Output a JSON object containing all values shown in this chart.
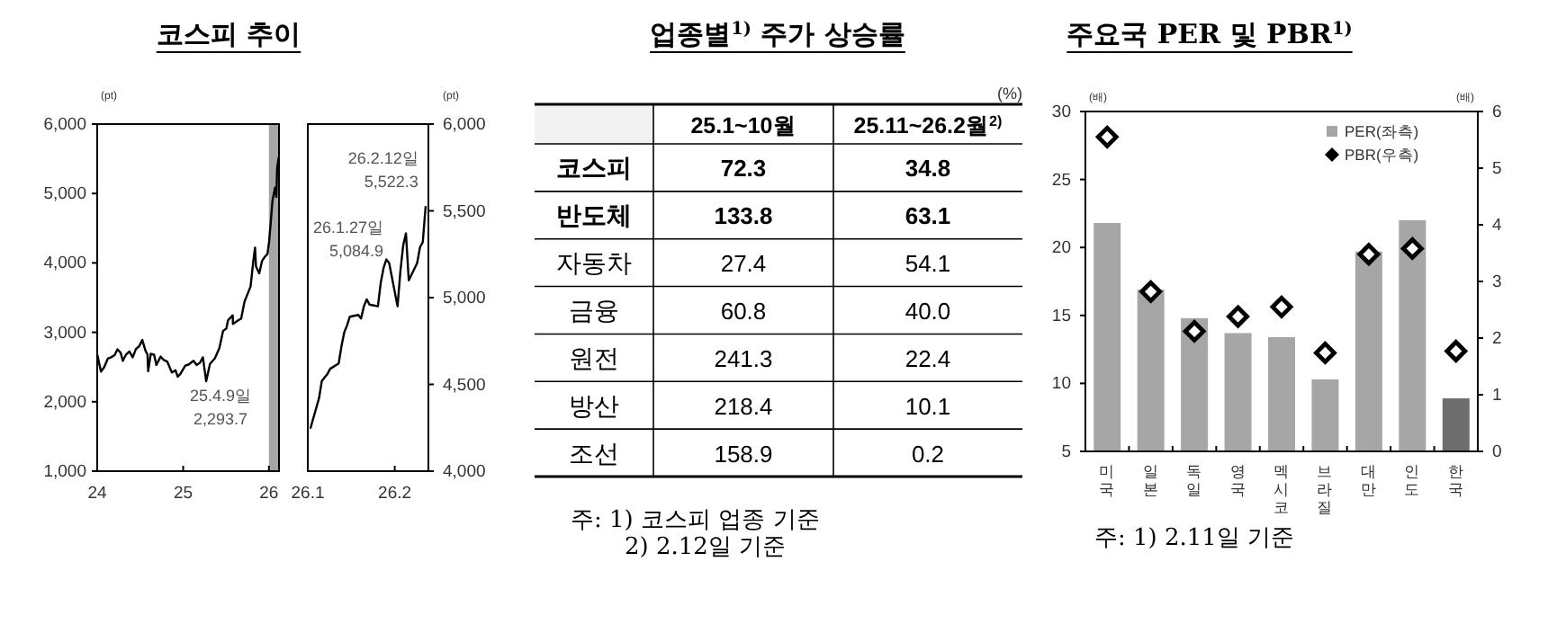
{
  "chart_data": [
    {
      "type": "line",
      "title": "코스피 추이",
      "ylabel": "(pt)",
      "color": "#000000",
      "x": [
        "2024-01-02",
        "2024-01-17",
        "2024-01-31",
        "2024-02-15",
        "2024-02-29",
        "2024-03-15",
        "2024-03-27",
        "2024-04-10",
        "2024-04-19",
        "2024-05-03",
        "2024-05-17",
        "2024-05-31",
        "2024-06-14",
        "2024-06-28",
        "2024-07-11",
        "2024-07-25",
        "2024-08-02",
        "2024-08-05",
        "2024-08-16",
        "2024-08-30",
        "2024-09-09",
        "2024-09-27",
        "2024-10-11",
        "2024-10-25",
        "2024-11-14",
        "2024-11-29",
        "2024-12-09",
        "2024-12-20",
        "2025-01-10",
        "2025-01-24",
        "2025-02-14",
        "2025-02-28",
        "2025-03-14",
        "2025-03-26",
        "2025-04-09",
        "2025-04-25",
        "2025-05-16",
        "2025-06-04",
        "2025-06-20",
        "2025-07-04",
        "2025-07-11",
        "2025-07-31",
        "2025-08-01",
        "2025-08-22",
        "2025-09-05",
        "2025-09-19",
        "2025-10-02",
        "2025-10-15",
        "2025-10-27",
        "2025-11-03",
        "2025-11-07",
        "2025-11-21",
        "2025-12-03",
        "2025-12-15",
        "2025-12-26",
        "2026-01-02",
        "2026-01-09",
        "2026-01-16",
        "2026-01-27",
        "2026-02-02",
        "2026-02-05",
        "2026-02-12"
      ],
      "values": [
        2670,
        2435,
        2500,
        2620,
        2640,
        2670,
        2755,
        2705,
        2590,
        2680,
        2725,
        2640,
        2760,
        2800,
        2890,
        2730,
        2680,
        2440,
        2690,
        2680,
        2530,
        2650,
        2600,
        2580,
        2420,
        2455,
        2360,
        2400,
        2520,
        2535,
        2590,
        2530,
        2565,
        2640,
        2293.7,
        2545,
        2625,
        2770,
        3020,
        3055,
        3175,
        3245,
        3120,
        3170,
        3200,
        3440,
        3550,
        3660,
        4040,
        4220,
        3950,
        3850,
        4030,
        4090,
        4130,
        4310,
        4590,
        4890,
        5084.9,
        4950,
        5370,
        5522.3
      ],
      "xlim": [
        "2024-01-01",
        "2026-02-13"
      ],
      "xticks": [
        {
          "value": "2024-01-01",
          "label": "24"
        },
        {
          "value": "2025-01-01",
          "label": "25"
        },
        {
          "value": "2026-01-01",
          "label": "26"
        }
      ],
      "ylim": [
        1000,
        6000
      ],
      "yticks": [
        {
          "value": 1000,
          "label": "1,000"
        },
        {
          "value": 2000,
          "label": "2,000"
        },
        {
          "value": 3000,
          "label": "3,000"
        },
        {
          "value": 4000,
          "label": "4,000"
        },
        {
          "value": 5000,
          "label": "5,000"
        },
        {
          "value": 6000,
          "label": "6,000"
        }
      ],
      "bands": [
        {
          "axis": "x",
          "from": "2026-01-01",
          "to": "2026-02-13",
          "color": "#a6a6a6"
        }
      ],
      "annotations": [
        {
          "text": "25.4.9일\n2,293.7",
          "x": "2025-04-09",
          "y": 2293.7
        }
      ]
    },
    {
      "type": "line",
      "ylabel": "(pt)",
      "color": "#000000",
      "x": [
        "--01-02",
        "--01-05",
        "--01-06",
        "--01-07",
        "--01-08",
        "--01-09",
        "--01-12",
        "--01-13",
        "--01-14",
        "--01-15",
        "--01-16",
        "--01-19",
        "--01-20",
        "--01-21",
        "--01-22",
        "--01-23",
        "--01-26",
        "--01-27",
        "--01-28",
        "--01-29",
        "--01-30",
        "--02-02",
        "--02-03",
        "--02-04",
        "--02-05",
        "--02-06",
        "--02-09",
        "--02-10",
        "--02-11",
        "--02-12"
      ],
      "values": [
        4250,
        4420,
        4520,
        4540,
        4560,
        4590,
        4620,
        4720,
        4800,
        4840,
        4890,
        4900,
        4880,
        4950,
        4990,
        4960,
        4950,
        5084.9,
        5170,
        5220,
        5200,
        4950,
        5150,
        5300,
        5370,
        5100,
        5200,
        5290,
        5320,
        5522.3
      ],
      "xlim": [
        "--01-01",
        "--02-13"
      ],
      "xticks": [
        {
          "value": "--01-01",
          "label": "26.1"
        },
        {
          "value": "--02-01",
          "label": "26.2"
        }
      ],
      "ylim": [
        4000,
        6000
      ],
      "yticks": [
        {
          "value": 4000,
          "label": "4,000"
        },
        {
          "value": 4500,
          "label": "4,500"
        },
        {
          "value": 5000,
          "label": "5,000"
        },
        {
          "value": 5500,
          "label": "5,500"
        },
        {
          "value": 6000,
          "label": "6,000"
        }
      ],
      "annotations": [
        {
          "text": "26.1.27일\n5,084.9",
          "x": "--01-27",
          "y": 5084.9
        },
        {
          "text": "26.2.12일\n5,522.3",
          "x": "--02-12",
          "y": 5522.3
        }
      ]
    },
    {
      "type": "other",
      "title": "업종별$^{1)}$ 주가 상승률",
      "categories": [
        "코스피",
        "반도체",
        "자동차",
        "금융",
        "원전",
        "방산",
        "조선"
      ],
      "series": [
        {
          "name": "25.1~10월",
          "values": [
            72.3,
            133.8,
            27.4,
            60.8,
            241.3,
            218.4,
            158.9
          ],
          "value_labels": [
            "72.3",
            "133.8",
            "27.4",
            "60.8",
            "241.3",
            "218.4",
            "158.9"
          ]
        },
        {
          "name": "25.11~26.2월$^{2)}$",
          "values": [
            34.8,
            63.1,
            54.1,
            40.0,
            22.4,
            10.1,
            0.2
          ],
          "value_labels": [
            "34.8",
            "63.1",
            "54.1",
            "40.0",
            "22.4",
            "10.1",
            "0.2"
          ]
        }
      ],
      "annotations": [
        "(%)",
        "주: 1) 코스피 업종 기준",
        "2) 2.12일 기준"
      ]
    },
    {
      "type": "bar",
      "title": "주요국 PER 및 PBR$^{1)}$",
      "ylabel": "(배)",
      "y2label": "(배)",
      "categories": [
        "미국",
        "일본",
        "독일",
        "영국",
        "멕시코",
        "브라질",
        "대만",
        "인도",
        "한국"
      ],
      "series": [
        {
          "name": "PER(좌측)",
          "type": "bar",
          "colors": [
            "#a6a6a6",
            "#a6a6a6",
            "#a6a6a6",
            "#a6a6a6",
            "#a6a6a6",
            "#a6a6a6",
            "#a6a6a6",
            "#a6a6a6",
            "#6e6e6e"
          ],
          "values": [
            21.8,
            16.9,
            14.8,
            13.7,
            13.4,
            10.3,
            19.7,
            22.0,
            8.9
          ]
        },
        {
          "name": "PBR(우측)",
          "type": "scatter",
          "axis": "y2",
          "marker": "diamond",
          "color": "#000000",
          "values": [
            5.55,
            2.82,
            2.12,
            2.38,
            2.55,
            1.74,
            3.48,
            3.58,
            1.77
          ]
        }
      ],
      "ylim": [
        5,
        30
      ],
      "yticks": [
        5,
        10,
        15,
        20,
        25,
        30
      ],
      "y2lim": [
        0,
        6
      ],
      "y2ticks": [
        0,
        1,
        2,
        3,
        4,
        5,
        6
      ],
      "legend": "top right",
      "annotations": [
        "주: 1) 2.11일 기준"
      ]
    }
  ]
}
